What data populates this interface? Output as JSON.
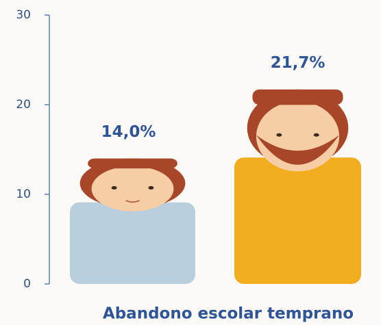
{
  "chart_data": {
    "type": "pictogram-bar",
    "categories": [
      null,
      null
    ],
    "values": [
      14.0,
      21.7
    ],
    "value_labels": [
      "14,0%",
      "21,7%"
    ],
    "colors": [
      "#b9cfdd",
      "#f2ad1f"
    ],
    "xlabel": "Abandono escolar temprano",
    "ylim": [
      0,
      30
    ],
    "yticks": [
      0,
      10,
      20,
      30
    ]
  }
}
